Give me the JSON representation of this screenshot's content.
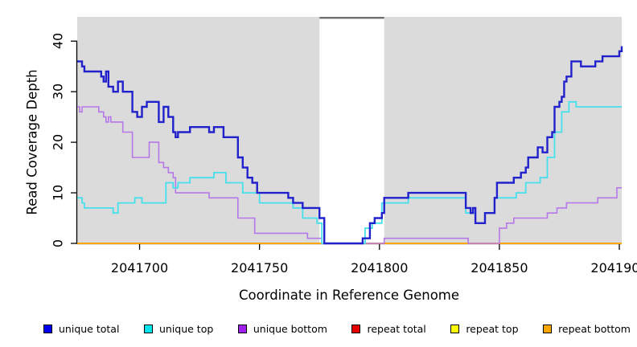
{
  "chart_data": {
    "type": "line",
    "line_style": "step",
    "title": "",
    "xlabel": "Coordinate in Reference Genome",
    "ylabel": "Read Coverage Depth",
    "xlim": [
      2041674,
      2041901
    ],
    "ylim": [
      0,
      44.8
    ],
    "x_ticks": [
      2041700,
      2041750,
      2041800,
      2041850,
      2041900
    ],
    "y_ticks": [
      0,
      10,
      20,
      30,
      40
    ],
    "grid": false,
    "legend_position": "bottom",
    "plot_background": "#DBDBDB",
    "page_background": "#FFFFFF",
    "axis_color": "#000000",
    "highlight_region": {
      "x_start": 2041775,
      "x_end": 2041802,
      "color": "#FFFFFF",
      "top_border_color": "#6E6E6E"
    },
    "series": [
      {
        "name": "repeat total",
        "color": "#E60000",
        "line_color": "#E60000",
        "width": 1.6,
        "points": [
          [
            2041674,
            0
          ]
        ]
      },
      {
        "name": "repeat top",
        "color": "#FFFF00",
        "line_color": "#FFFF00",
        "width": 1.6,
        "points": [
          [
            2041674,
            0
          ]
        ]
      },
      {
        "name": "repeat bottom",
        "color": "#FFA500",
        "line_color": "#FFA500",
        "width": 2,
        "points": [
          [
            2041674,
            0
          ]
        ]
      },
      {
        "name": "unique bottom",
        "color": "#A020F0",
        "line_color": "#B678E8",
        "width": 1.6,
        "points": [
          [
            2041674,
            27
          ],
          [
            2041675,
            26
          ],
          [
            2041676,
            27
          ],
          [
            2041683,
            26
          ],
          [
            2041685,
            25
          ],
          [
            2041686,
            24
          ],
          [
            2041687,
            25
          ],
          [
            2041688,
            24
          ],
          [
            2041693,
            22
          ],
          [
            2041697,
            17
          ],
          [
            2041704,
            20
          ],
          [
            2041708,
            16
          ],
          [
            2041710,
            15
          ],
          [
            2041712,
            14
          ],
          [
            2041714,
            13
          ],
          [
            2041715,
            10
          ],
          [
            2041729,
            9
          ],
          [
            2041741,
            5
          ],
          [
            2041748,
            2
          ],
          [
            2041770,
            1
          ],
          [
            2041776,
            0
          ],
          [
            2041802,
            1
          ],
          [
            2041837,
            0
          ],
          [
            2041850,
            3
          ],
          [
            2041853,
            4
          ],
          [
            2041856,
            5
          ],
          [
            2041870,
            6
          ],
          [
            2041874,
            7
          ],
          [
            2041878,
            8
          ],
          [
            2041891,
            9
          ],
          [
            2041899,
            11
          ]
        ]
      },
      {
        "name": "unique top",
        "color": "#00E5EE",
        "line_color": "#45E0EC",
        "width": 1.8,
        "points": [
          [
            2041674,
            9
          ],
          [
            2041676,
            8
          ],
          [
            2041677,
            7
          ],
          [
            2041689,
            6
          ],
          [
            2041691,
            8
          ],
          [
            2041698,
            9
          ],
          [
            2041701,
            8
          ],
          [
            2041711,
            12
          ],
          [
            2041714,
            11
          ],
          [
            2041716,
            12
          ],
          [
            2041721,
            13
          ],
          [
            2041731,
            14
          ],
          [
            2041736,
            12
          ],
          [
            2041743,
            10
          ],
          [
            2041750,
            8
          ],
          [
            2041764,
            7
          ],
          [
            2041768,
            5
          ],
          [
            2041774,
            4
          ],
          [
            2041776,
            0
          ],
          [
            2041794,
            3
          ],
          [
            2041797,
            4
          ],
          [
            2041801,
            8
          ],
          [
            2041812,
            9
          ],
          [
            2041836,
            6
          ],
          [
            2041840,
            4
          ],
          [
            2041844,
            6
          ],
          [
            2041848,
            9
          ],
          [
            2041857,
            10
          ],
          [
            2041861,
            12
          ],
          [
            2041867,
            13
          ],
          [
            2041870,
            17
          ],
          [
            2041873,
            22
          ],
          [
            2041876,
            26
          ],
          [
            2041879,
            28
          ],
          [
            2041882,
            27
          ]
        ]
      },
      {
        "name": "unique total",
        "color": "#0000EE",
        "line_color": "#2121CC",
        "width": 2.4,
        "points": [
          [
            2041674,
            36
          ],
          [
            2041676,
            35
          ],
          [
            2041677,
            34
          ],
          [
            2041684,
            33
          ],
          [
            2041685,
            32
          ],
          [
            2041686,
            34
          ],
          [
            2041687,
            31
          ],
          [
            2041689,
            30
          ],
          [
            2041691,
            32
          ],
          [
            2041693,
            30
          ],
          [
            2041697,
            26
          ],
          [
            2041699,
            25
          ],
          [
            2041701,
            27
          ],
          [
            2041703,
            28
          ],
          [
            2041708,
            24
          ],
          [
            2041710,
            27
          ],
          [
            2041712,
            25
          ],
          [
            2041714,
            22
          ],
          [
            2041715,
            21
          ],
          [
            2041716,
            22
          ],
          [
            2041721,
            23
          ],
          [
            2041729,
            22
          ],
          [
            2041731,
            23
          ],
          [
            2041735,
            21
          ],
          [
            2041741,
            17
          ],
          [
            2041743,
            15
          ],
          [
            2041745,
            13
          ],
          [
            2041747,
            12
          ],
          [
            2041749,
            10
          ],
          [
            2041762,
            9
          ],
          [
            2041764,
            8
          ],
          [
            2041768,
            7
          ],
          [
            2041775,
            5
          ],
          [
            2041777,
            0
          ],
          [
            2041793,
            1
          ],
          [
            2041796,
            4
          ],
          [
            2041798,
            5
          ],
          [
            2041801,
            6
          ],
          [
            2041802,
            9
          ],
          [
            2041812,
            10
          ],
          [
            2041836,
            7
          ],
          [
            2041838,
            6
          ],
          [
            2041839,
            7
          ],
          [
            2041840,
            4
          ],
          [
            2041844,
            6
          ],
          [
            2041848,
            9
          ],
          [
            2041849,
            12
          ],
          [
            2041856,
            13
          ],
          [
            2041859,
            14
          ],
          [
            2041861,
            15
          ],
          [
            2041862,
            17
          ],
          [
            2041866,
            19
          ],
          [
            2041868,
            18
          ],
          [
            2041870,
            21
          ],
          [
            2041872,
            22
          ],
          [
            2041873,
            27
          ],
          [
            2041875,
            28
          ],
          [
            2041876,
            29
          ],
          [
            2041877,
            32
          ],
          [
            2041878,
            33
          ],
          [
            2041880,
            36
          ],
          [
            2041884,
            35
          ],
          [
            2041890,
            36
          ],
          [
            2041893,
            37
          ],
          [
            2041900,
            38
          ],
          [
            2041901,
            39
          ]
        ]
      }
    ]
  },
  "legend": {
    "items": [
      {
        "label": "unique total",
        "color": "#0000EE"
      },
      {
        "label": "unique top",
        "color": "#00E5EE"
      },
      {
        "label": "unique bottom",
        "color": "#A020F0"
      },
      {
        "label": "repeat total",
        "color": "#E60000"
      },
      {
        "label": "repeat top",
        "color": "#FFFF00"
      },
      {
        "label": "repeat bottom",
        "color": "#FFA500"
      }
    ]
  }
}
